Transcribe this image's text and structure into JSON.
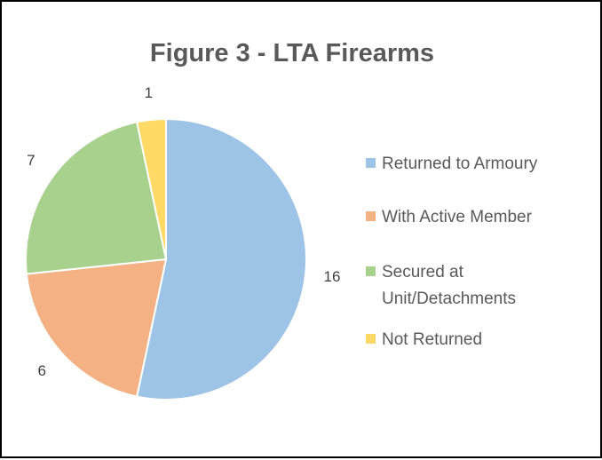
{
  "chart_data": {
    "type": "pie",
    "title": "Figure 3 - LTA Firearms",
    "categories": [
      "Returned to Armoury",
      "With Active Member",
      "Secured at Unit/Detachments",
      "Not Returned"
    ],
    "legend_lines": [
      [
        "Returned to Armoury"
      ],
      [
        "With Active Member"
      ],
      [
        "Secured at",
        "Unit/Detachments"
      ],
      [
        "Not Returned"
      ]
    ],
    "values": [
      16,
      6,
      7,
      1
    ],
    "data_labels": [
      "16",
      "6",
      "7",
      "1"
    ],
    "colors": [
      "#9DC3E6",
      "#F4B183",
      "#A9D18E",
      "#FFD966"
    ],
    "legend_position": "right",
    "start_angle_deg": 0,
    "direction": "clockwise"
  }
}
